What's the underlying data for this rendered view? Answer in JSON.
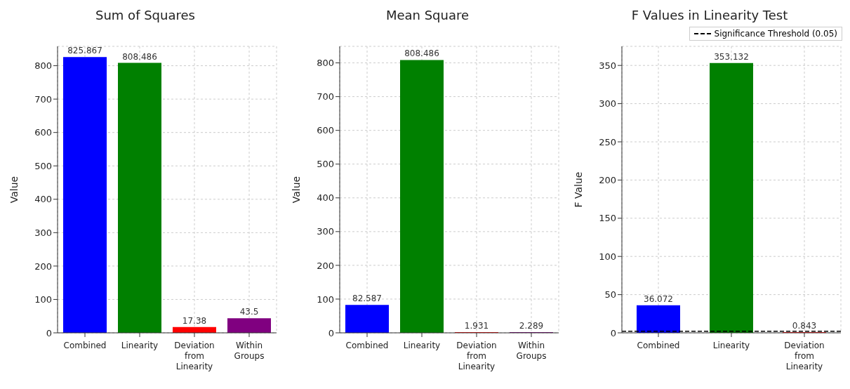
{
  "chart_data": [
    {
      "type": "bar",
      "title": "Sum of Squares",
      "ylabel": "Value",
      "categories": [
        "Combined",
        "Linearity",
        "Deviation from Linearity",
        "Within Groups"
      ],
      "values": [
        825.867,
        808.486,
        17.38,
        43.5
      ],
      "colors": [
        "#0000ff",
        "#008000",
        "#ff0000",
        "#800080"
      ],
      "ylim": [
        0,
        858
      ],
      "yticks": [
        0,
        100,
        200,
        300,
        400,
        500,
        600,
        700,
        800
      ],
      "grid": true,
      "data_labels": true
    },
    {
      "type": "bar",
      "title": "Mean Square",
      "ylabel": "Value",
      "categories": [
        "Combined",
        "Linearity",
        "Deviation from Linearity",
        "Within Groups"
      ],
      "values": [
        82.587,
        808.486,
        1.931,
        2.289
      ],
      "colors": [
        "#0000ff",
        "#008000",
        "#ff0000",
        "#800080"
      ],
      "ylim": [
        0,
        849
      ],
      "yticks": [
        0,
        100,
        200,
        300,
        400,
        500,
        600,
        700,
        800
      ],
      "grid": true,
      "data_labels": true
    },
    {
      "type": "bar",
      "title": "F Values in Linearity Test",
      "ylabel": "F Value",
      "categories": [
        "Combined",
        "Linearity",
        "Deviation from Linearity"
      ],
      "values": [
        36.072,
        353.132,
        0.843
      ],
      "colors": [
        "#0000ff",
        "#008000",
        "#ff0000"
      ],
      "ylim": [
        0,
        375
      ],
      "yticks": [
        0,
        50,
        100,
        150,
        200,
        250,
        300,
        350
      ],
      "grid": true,
      "data_labels": true,
      "legend": "top right",
      "ref_lines": [
        {
          "axis": "y",
          "value": 2,
          "label": "Significance Threshold (0.05)",
          "color": "#000000",
          "line_style": "dashed"
        }
      ]
    }
  ]
}
